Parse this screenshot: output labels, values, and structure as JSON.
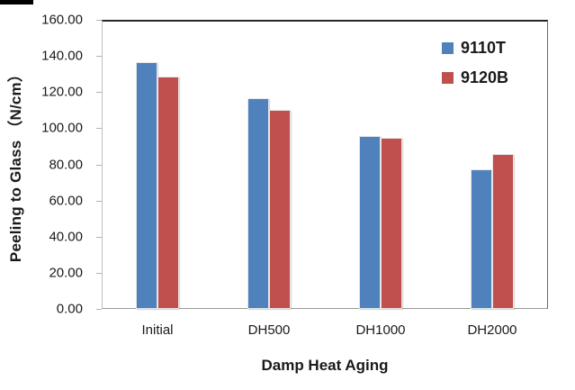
{
  "decor": {
    "top_left_strip_color": "#000000"
  },
  "chart_data": {
    "type": "bar",
    "title": "",
    "categories": [
      "Initial",
      "DH500",
      "DH1000",
      "DH2000"
    ],
    "series": [
      {
        "name": "9110T",
        "color": "#4F81BD",
        "values": [
          136.5,
          116.5,
          95.5,
          77.5
        ]
      },
      {
        "name": "9120B",
        "color": "#C0504D",
        "values": [
          128.5,
          110.0,
          94.5,
          85.5
        ]
      }
    ],
    "xlabel": "Damp Heat Aging",
    "ylabel": "Peeling to Glass （N/cm）",
    "ylim": [
      0,
      160
    ],
    "ytick_step": 20,
    "ytick_labels": [
      "0.00",
      "20.00",
      "40.00",
      "60.00",
      "80.00",
      "100.00",
      "120.00",
      "140.00",
      "160.00"
    ],
    "grid": false,
    "legend_position": "top-right-inside",
    "text_color": "#1a1a1a",
    "axis": {
      "top_border": "#262626",
      "right_border": "#6b6b6b",
      "bottom_axis": "#9a9a9a",
      "left_axis": "#c0c0c0",
      "tick_color": "#b3b3b3"
    }
  }
}
